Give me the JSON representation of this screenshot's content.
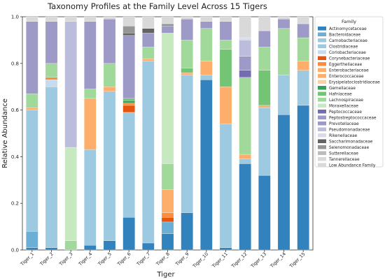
{
  "chart_data": {
    "type": "bar",
    "stacked": true,
    "title": "Taxonomy Profiles at the Family Level Across 15 Tigers",
    "xlabel": "Tiger",
    "ylabel": "Relative Abundance",
    "ylim": [
      0,
      1.0
    ],
    "yticks": [
      0.0,
      0.2,
      0.4,
      0.6,
      0.8,
      1.0
    ],
    "ytick_labels": [
      "0.0",
      "0.2",
      "0.4",
      "0.6",
      "0.8",
      "1.0"
    ],
    "legend_title": "Family",
    "legend_position": "right",
    "categories": [
      "Tiger_1",
      "Tiger_2",
      "Tiger_3",
      "Tiger_4",
      "Tiger_5",
      "Tiger_6",
      "Tiger_7",
      "Tiger_8",
      "Tiger_9",
      "Tiger_10",
      "Tiger_11",
      "Tiger_12",
      "Tiger_13",
      "Tiger_14",
      "Tiger_15"
    ],
    "series": [
      {
        "name": "Actinomycetaceae",
        "color": "#3182bd",
        "values": [
          0.01,
          0.01,
          0,
          0.02,
          0.04,
          0.14,
          0.03,
          0.07,
          0.16,
          0.73,
          0.01,
          0.37,
          0.32,
          0.58,
          0.62
        ]
      },
      {
        "name": "Bacteroidaceae",
        "color": "#6baed6",
        "values": [
          0.07,
          0,
          0,
          0,
          0,
          0,
          0,
          0.05,
          0,
          0,
          0,
          0,
          0,
          0,
          0
        ]
      },
      {
        "name": "Carnobacteriaceae",
        "color": "#9ecae1",
        "values": [
          0,
          0,
          0,
          0,
          0,
          0,
          0,
          0,
          0,
          0,
          0,
          0,
          0,
          0,
          0
        ]
      },
      {
        "name": "Clostridiaceae",
        "color": "#9ecae1",
        "values": [
          0.52,
          0.69,
          0,
          0.41,
          0.64,
          0.45,
          0.78,
          0,
          0.59,
          0.02,
          0.53,
          0.02,
          0.29,
          0.17,
          0.15
        ]
      },
      {
        "name": "Coriobacteriaceae",
        "color": "#c6dbef",
        "values": [
          0,
          0.03,
          0,
          0,
          0,
          0,
          0,
          0,
          0,
          0,
          0,
          0,
          0,
          0,
          0
        ]
      },
      {
        "name": "Corynebacteriaceae",
        "color": "#e6550d",
        "values": [
          0,
          0,
          0,
          0,
          0,
          0.03,
          0,
          0.02,
          0,
          0,
          0,
          0,
          0,
          0,
          0
        ]
      },
      {
        "name": "Eggerthellaceae",
        "color": "#fd8d3c",
        "values": [
          0,
          0.01,
          0,
          0,
          0,
          0.01,
          0,
          0.02,
          0,
          0,
          0,
          0,
          0,
          0,
          0
        ]
      },
      {
        "name": "Enterobacteriaceae",
        "color": "#fdae6b",
        "values": [
          0.01,
          0,
          0,
          0,
          0.02,
          0,
          0.01,
          0.1,
          0.01,
          0.06,
          0.16,
          0.02,
          0.01,
          0,
          0.04
        ]
      },
      {
        "name": "Enterococcaceae",
        "color": "#fdae6b",
        "values": [
          0,
          0,
          0,
          0.22,
          0,
          0,
          0,
          0,
          0,
          0,
          0,
          0,
          0,
          0,
          0
        ]
      },
      {
        "name": "Erysipelatoclostridiaceae",
        "color": "#fdd0a2",
        "values": [
          0,
          0,
          0,
          0,
          0,
          0,
          0,
          0,
          0,
          0,
          0,
          0,
          0,
          0,
          0
        ]
      },
      {
        "name": "Gemellaceae",
        "color": "#31a354",
        "values": [
          0,
          0,
          0,
          0,
          0,
          0.01,
          0,
          0,
          0,
          0,
          0,
          0,
          0,
          0,
          0
        ]
      },
      {
        "name": "Hafniaceae",
        "color": "#74c476",
        "values": [
          0,
          0,
          0,
          0,
          0,
          0.01,
          0,
          0,
          0.02,
          0,
          0.16,
          0,
          0.15,
          0,
          0
        ]
      },
      {
        "name": "Lachnospiraceae",
        "color": "#a1d99b",
        "values": [
          0.06,
          0.06,
          0.04,
          0.04,
          0.1,
          0,
          0.05,
          0.11,
          0.12,
          0.14,
          0.04,
          0.33,
          0.1,
          0.2,
          0.1
        ]
      },
      {
        "name": "Moraxellaceae",
        "color": "#c7e9c0",
        "values": [
          0,
          0,
          0.4,
          0,
          0,
          0,
          0,
          0.56,
          0,
          0,
          0,
          0,
          0,
          0,
          0
        ]
      },
      {
        "name": "Peptococcaceae",
        "color": "#756bb1",
        "values": [
          0,
          0,
          0,
          0,
          0,
          0,
          0,
          0,
          0,
          0,
          0,
          0.03,
          0,
          0,
          0
        ]
      },
      {
        "name": "Peptostreptococcaceae",
        "color": "#9e9ac8",
        "values": [
          0,
          0,
          0,
          0,
          0,
          0,
          0,
          0,
          0,
          0,
          0,
          0.06,
          0,
          0,
          0
        ]
      },
      {
        "name": "Prevotellaceae",
        "color": "#9e9ac8",
        "values": [
          0.31,
          0.18,
          0,
          0.29,
          0.19,
          0.27,
          0.06,
          0.03,
          0.09,
          0.03,
          0.08,
          0,
          0.07,
          0.04,
          0.06
        ]
      },
      {
        "name": "Pseudomonadaceae",
        "color": "#bcbddc",
        "values": [
          0,
          0,
          0.54,
          0,
          0,
          0,
          0,
          0,
          0,
          0,
          0,
          0.07,
          0,
          0,
          0
        ]
      },
      {
        "name": "Rikenellaceae",
        "color": "#dadaeb",
        "values": [
          0,
          0,
          0,
          0,
          0,
          0,
          0,
          0,
          0,
          0,
          0,
          0.01,
          0,
          0,
          0
        ]
      },
      {
        "name": "Saccharimonadaceae",
        "color": "#636363",
        "values": [
          0,
          0,
          0,
          0,
          0,
          0.01,
          0.02,
          0,
          0,
          0,
          0,
          0,
          0,
          0,
          0
        ]
      },
      {
        "name": "Selenomonadaceae",
        "color": "#969696",
        "values": [
          0,
          0,
          0,
          0,
          0,
          0.03,
          0,
          0.01,
          0,
          0,
          0,
          0,
          0,
          0,
          0
        ]
      },
      {
        "name": "Sutterellaceae",
        "color": "#bdbdbd",
        "values": [
          0,
          0,
          0,
          0,
          0,
          0,
          0,
          0,
          0,
          0,
          0,
          0,
          0,
          0,
          0
        ]
      },
      {
        "name": "Tannerellaceae",
        "color": "#d9d9d9",
        "values": [
          0,
          0,
          0,
          0,
          0,
          0,
          0,
          0,
          0,
          0,
          0,
          0,
          0,
          0,
          0
        ]
      },
      {
        "name": "Low Abundance Family",
        "color": "#d9d9d9",
        "values": [
          0.02,
          0.02,
          0.02,
          0.02,
          0.01,
          0.04,
          0.05,
          0.03,
          0.01,
          0.02,
          0.02,
          0.09,
          0.06,
          0.01,
          0.03
        ]
      }
    ]
  }
}
